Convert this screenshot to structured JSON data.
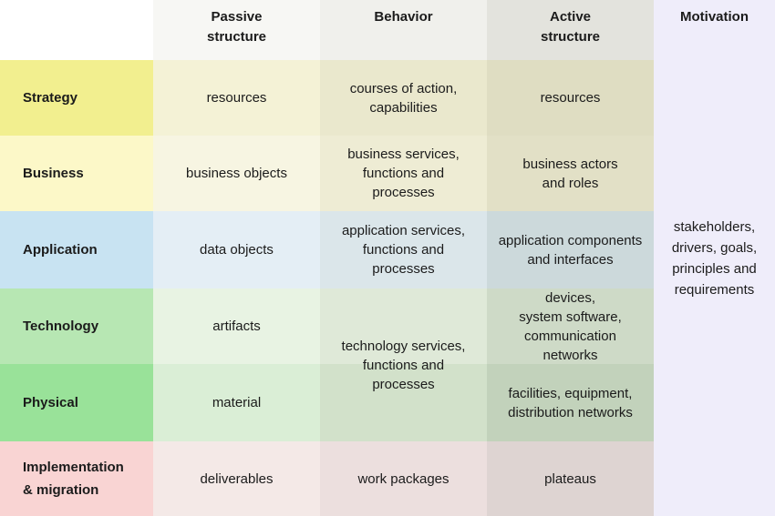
{
  "matrix": {
    "column_headers": {
      "passive": "Passive\nstructure",
      "behavior": "Behavior",
      "active": "Active\nstructure",
      "motivation": "Motivation"
    },
    "row_headers": {
      "strategy": "Strategy",
      "business": "Business",
      "application": "Application",
      "technology": "Technology",
      "physical": "Physical",
      "implementation": "Implementation\n& migration"
    },
    "cells": {
      "strategy": {
        "passive": "resources",
        "behavior": "courses of action,\ncapabilities",
        "active": "resources"
      },
      "business": {
        "passive": "business objects",
        "behavior": "business services,\nfunctions and\nprocesses",
        "active": "business actors\nand roles"
      },
      "application": {
        "passive": "data objects",
        "behavior": "application services,\nfunctions and\nprocesses",
        "active": "application components\nand interfaces"
      },
      "technology": {
        "passive": "artifacts",
        "active": "devices,\nsystem software,\ncommunication\nnetworks"
      },
      "technology_physical": {
        "behavior": "technology services,\nfunctions and\nprocesses"
      },
      "physical": {
        "passive": "material",
        "active": "facilities, equipment,\ndistribution networks"
      },
      "implementation": {
        "passive": "deliverables",
        "behavior": "work packages",
        "active": "plateaus"
      }
    },
    "motivation_text": "stakeholders,\ndrivers, goals,\nprinciples and\nrequirements",
    "colors": {
      "text": "#1b1b1b",
      "header": {
        "passive": "#f7f7f4",
        "behavior": "#f0f0ec",
        "active": "#e3e3dd"
      },
      "motivation_column": "#efedfa",
      "strategy": {
        "header": "#f2ef8f",
        "passive": "#f4f2d6",
        "behavior": "#eae8cd",
        "active": "#dfddc2"
      },
      "business": {
        "header": "#fcf8c8",
        "passive": "#f7f5e2",
        "behavior": "#eeecd4",
        "active": "#e2e0c6"
      },
      "application": {
        "header": "#c8e3f2",
        "passive": "#e4eef5",
        "behavior": "#dbe6ea",
        "active": "#ccd9db"
      },
      "technology": {
        "header": "#b7e7b3",
        "passive": "#e8f3e3",
        "behavior": "#dfe9d8",
        "active": "#cedac7"
      },
      "physical": {
        "header": "#99e299",
        "passive": "#daeed6",
        "behavior": "#d2e1ca",
        "active": "#c2d2bb"
      },
      "implementation": {
        "header": "#f9d4d3",
        "passive": "#f4e9e7",
        "behavior": "#ecdfde",
        "active": "#ded4d2"
      }
    }
  }
}
